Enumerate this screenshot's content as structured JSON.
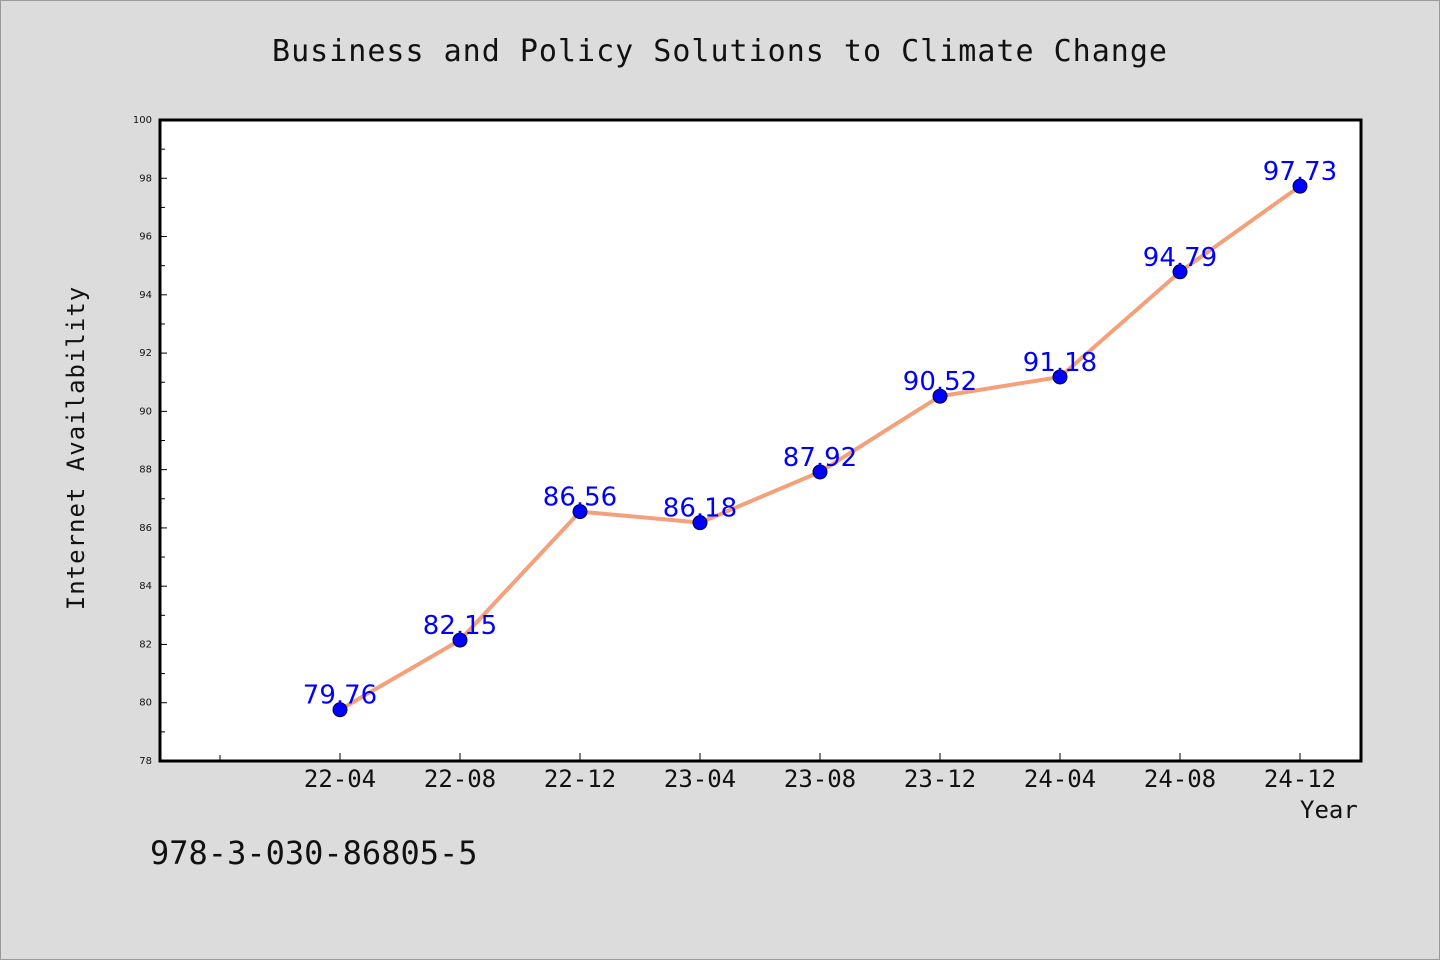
{
  "chart_data": {
    "type": "line",
    "title": "Business and Policy Solutions to Climate Change",
    "xlabel": "Year",
    "ylabel": "Internet Availability",
    "categories": [
      "22-04",
      "22-08",
      "22-12",
      "23-04",
      "23-08",
      "23-12",
      "24-04",
      "24-08",
      "24-12"
    ],
    "values": [
      79.76,
      82.15,
      86.56,
      86.18,
      87.92,
      90.52,
      91.18,
      94.79,
      97.73
    ],
    "ylim": [
      78,
      100
    ],
    "yticks": [
      78,
      80,
      82,
      84,
      86,
      88,
      90,
      92,
      94,
      96,
      98,
      100
    ],
    "grid": false,
    "data_labels": true,
    "colors": {
      "line": "#f4a07a",
      "marker": "#0000ff",
      "label": "#0000ff"
    }
  },
  "annotation": "978-3-030-86805-5"
}
